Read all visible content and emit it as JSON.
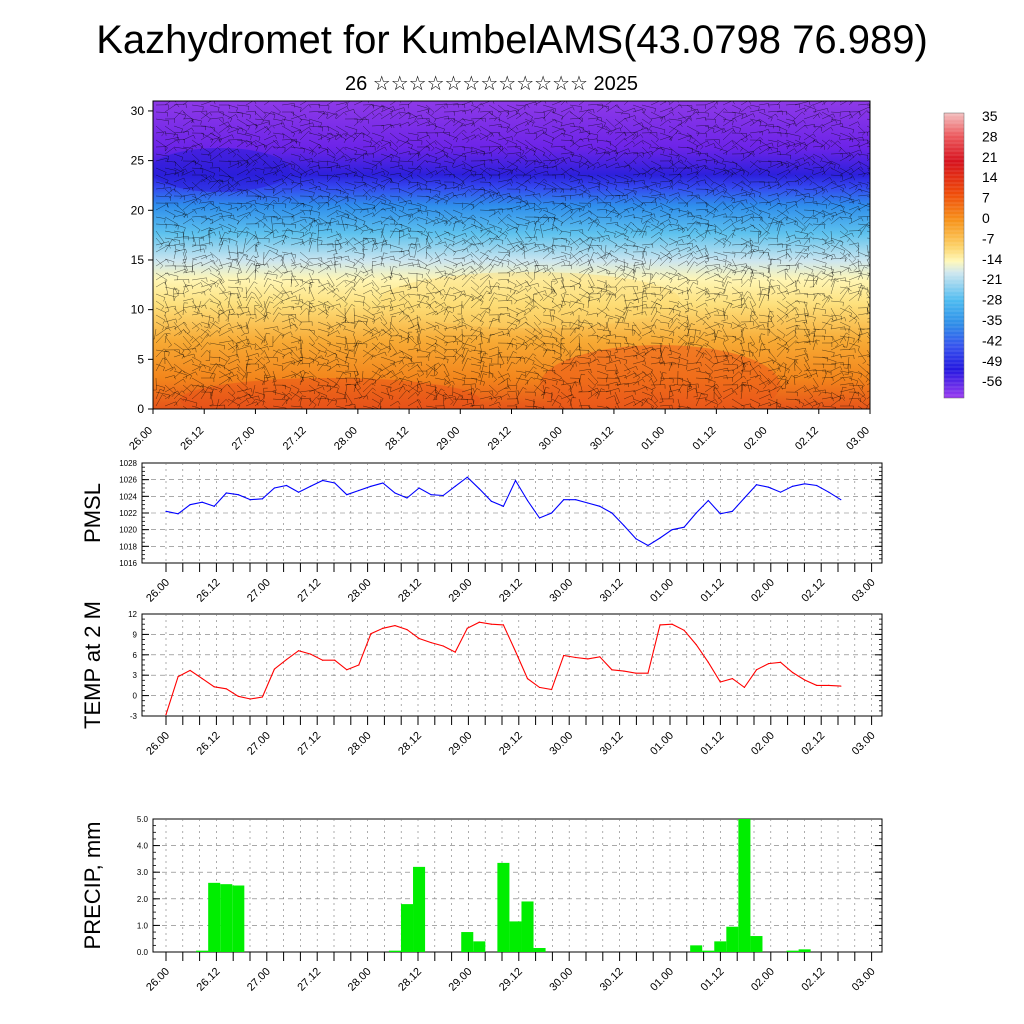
{
  "title": "Kazhydromet for KumbelAMS(43.0798 76.989)",
  "subtitle": "26 ☆☆☆☆☆☆☆☆☆☆☆☆ 2025",
  "chart_data": [
    {
      "type": "heatmap",
      "description_key": "cross-section",
      "ylim": [
        0,
        31
      ],
      "yticks": [
        0,
        5,
        10,
        15,
        20,
        25,
        30
      ],
      "xticks": [
        "26.00",
        "26.12",
        "27.00",
        "27.12",
        "28.00",
        "28.12",
        "29.00",
        "29.12",
        "30.00",
        "30.12",
        "01.00",
        "01.12",
        "02.00",
        "02.12",
        "03.00"
      ],
      "colorbar_labels": [
        "35",
        "28",
        "21",
        "14",
        "7",
        "0",
        "-7",
        "-14",
        "-21",
        "-28",
        "-35",
        "-42",
        "-49",
        "-56"
      ],
      "color_stops": [
        "#f3b3b3",
        "#e0101a",
        "#f06a08",
        "#fbc44a",
        "#fff6b4",
        "#aad8ee",
        "#30aee8",
        "#3a5cf0",
        "#5b0fe0",
        "#9a3ae8"
      ]
    },
    {
      "type": "line",
      "ylabel": "PMSL",
      "ylim": [
        1016,
        1028
      ],
      "yticks": [
        1016,
        1018,
        1020,
        1022,
        1024,
        1026,
        1028
      ],
      "xticks": [
        "26.00",
        "26.12",
        "27.00",
        "27.12",
        "28.00",
        "28.12",
        "29.00",
        "29.12",
        "30.00",
        "30.12",
        "01.00",
        "01.12",
        "02.00",
        "02.12",
        "03.00"
      ],
      "color": "#0000ff",
      "values": [
        1022.2,
        1021.9,
        1023.0,
        1023.3,
        1022.8,
        1024.4,
        1024.2,
        1023.6,
        1023.7,
        1025.0,
        1025.3,
        1024.5,
        1025.2,
        1025.9,
        1025.6,
        1024.2,
        1024.7,
        1025.2,
        1025.6,
        1024.4,
        1023.8,
        1025.0,
        1024.2,
        1024.1,
        1025.2,
        1026.3,
        1024.9,
        1023.4,
        1022.8,
        1025.9,
        1023.5,
        1021.4,
        1022.0,
        1023.6,
        1023.6,
        1023.2,
        1022.8,
        1022.0,
        1020.5,
        1018.9,
        1018.1,
        1019.0,
        1020.0,
        1020.3,
        1022.0,
        1023.5,
        1021.9,
        1022.2,
        1023.8,
        1025.4,
        1025.1,
        1024.5,
        1025.2,
        1025.5,
        1025.3,
        1024.5,
        1023.6
      ]
    },
    {
      "type": "line",
      "ylabel": "TEMP at 2 M",
      "ylim": [
        -3,
        12
      ],
      "yticks": [
        -3,
        0,
        3,
        6,
        9,
        12
      ],
      "xticks": [
        "26.00",
        "26.12",
        "27.00",
        "27.12",
        "28.00",
        "28.12",
        "29.00",
        "29.12",
        "30.00",
        "30.12",
        "01.00",
        "01.12",
        "02.00",
        "02.12",
        "03.00"
      ],
      "color": "#ff0000",
      "values": [
        -2.8,
        2.8,
        3.7,
        2.5,
        1.3,
        1.0,
        -0.1,
        -0.5,
        -0.2,
        3.9,
        5.3,
        6.6,
        6.1,
        5.2,
        5.2,
        3.8,
        4.5,
        9.1,
        9.9,
        10.3,
        9.7,
        8.4,
        7.8,
        7.3,
        6.4,
        9.9,
        10.8,
        10.5,
        10.4,
        6.5,
        2.5,
        1.2,
        0.9,
        5.9,
        5.6,
        5.4,
        5.7,
        3.8,
        3.6,
        3.3,
        3.3,
        10.4,
        10.5,
        9.6,
        7.5,
        4.9,
        2.0,
        2.5,
        1.2,
        3.8,
        4.7,
        4.9,
        3.4,
        2.3,
        1.5,
        1.5,
        1.4
      ]
    },
    {
      "type": "bar",
      "ylabel": "PRECIP, mm",
      "ylim": [
        0,
        5
      ],
      "yticks": [
        "0.0",
        "1.0",
        "2.0",
        "3.0",
        "4.0",
        "5.0"
      ],
      "xticks": [
        "26.00",
        "26.12",
        "27.00",
        "27.12",
        "28.00",
        "28.12",
        "29.00",
        "29.12",
        "30.00",
        "30.12",
        "01.00",
        "01.12",
        "02.00",
        "02.12",
        "03.00"
      ],
      "color": "#00ee00",
      "values": [
        0,
        0,
        0,
        0.05,
        2.6,
        2.55,
        2.5,
        0,
        0,
        0,
        0,
        0,
        0,
        0,
        0,
        0,
        0,
        0,
        0,
        0.05,
        1.8,
        3.2,
        0,
        0,
        0,
        0.75,
        0.4,
        0,
        3.35,
        1.15,
        1.9,
        0.15,
        0,
        0,
        0,
        0,
        0,
        0,
        0,
        0,
        0,
        0,
        0,
        0,
        0.25,
        0.05,
        0.4,
        0.95,
        5.0,
        0.6,
        0,
        0,
        0.05,
        0.1,
        0,
        0,
        0
      ]
    }
  ]
}
